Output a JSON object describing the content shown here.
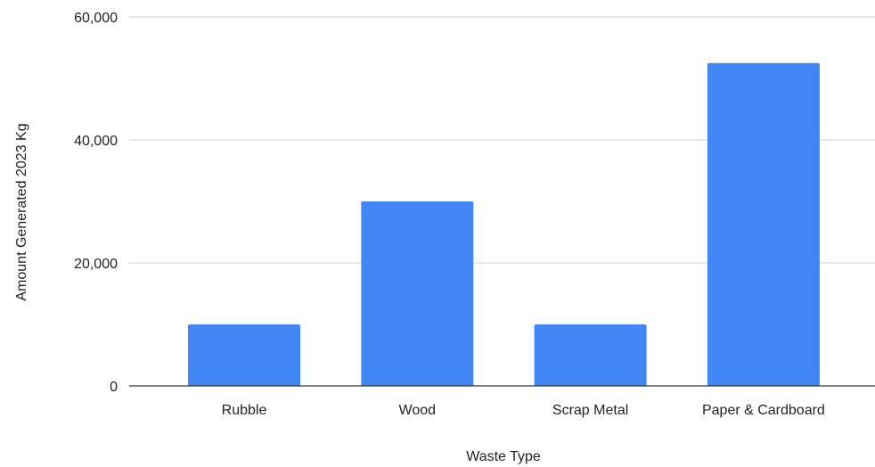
{
  "chart_data": {
    "type": "bar",
    "title": "",
    "xlabel": "Waste Type",
    "ylabel": "Amount Generated 2023 Kg",
    "categories": [
      "Rubble",
      "Wood",
      "Scrap Metal",
      "Paper & Cardboard"
    ],
    "series": [
      {
        "values": [
          10000,
          30000,
          10000,
          52500
        ],
        "color": "#4285f4"
      }
    ],
    "ylim": [
      0,
      60000
    ],
    "yticks": [
      0,
      20000,
      40000,
      60000
    ],
    "ytick_labels": [
      "0",
      "20,000",
      "40,000",
      "60,000"
    ],
    "grid": "horizontal",
    "legend": "none"
  }
}
